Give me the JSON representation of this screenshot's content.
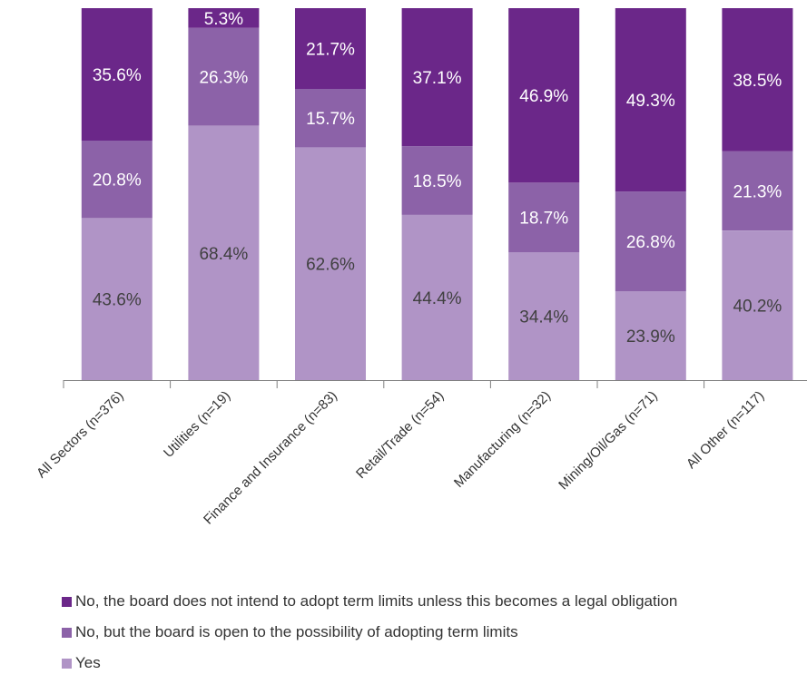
{
  "chart_data": {
    "type": "bar",
    "stacked": true,
    "categories": [
      "All Sectors (n=376)",
      "Utilities (n=19)",
      "Finance and Insurance (n=83)",
      "Retail/Trade (n=54)",
      "Manufacturing (n=32)",
      "Mining/Oil/Gas (n=71)",
      "All Other (n=117)"
    ],
    "series": [
      {
        "name": "Yes",
        "color": "#b094c6",
        "label_color": "#404040",
        "values": [
          43.6,
          68.4,
          62.6,
          44.4,
          34.4,
          23.9,
          40.2
        ],
        "labels": [
          "43.6%",
          "68.4%",
          "62.6%",
          "44.4%",
          "34.4%",
          "23.9%",
          "40.2%"
        ]
      },
      {
        "name": "No, but the board is open to the possibility of adopting term limits",
        "color": "#8c62a8",
        "label_color": "#ffffff",
        "values": [
          20.8,
          26.3,
          15.7,
          18.5,
          18.7,
          26.8,
          21.3
        ],
        "labels": [
          "20.8%",
          "26.3%",
          "15.7%",
          "18.5%",
          "18.7%",
          "26.8%",
          "21.3%"
        ]
      },
      {
        "name": "No, the board does not intend to adopt term limits unless this becomes a legal obligation",
        "color": "#6b2789",
        "label_color": "#ffffff",
        "values": [
          35.6,
          5.3,
          21.7,
          37.1,
          46.9,
          49.3,
          38.5
        ],
        "labels": [
          "35.6%",
          "5.3%",
          "21.7%",
          "37.1%",
          "46.9%",
          "49.3%",
          "38.5%"
        ]
      }
    ],
    "ylim": [
      0,
      100
    ],
    "grid": false,
    "legend_position": "bottom-left",
    "legend": [
      {
        "label": "No, the board does not intend to adopt term limits unless this becomes a legal obligation",
        "color": "#6b2789"
      },
      {
        "label": "No, but the board is open to the possibility of adopting term limits",
        "color": "#8c62a8"
      },
      {
        "label": "Yes",
        "color": "#b094c6"
      }
    ]
  }
}
